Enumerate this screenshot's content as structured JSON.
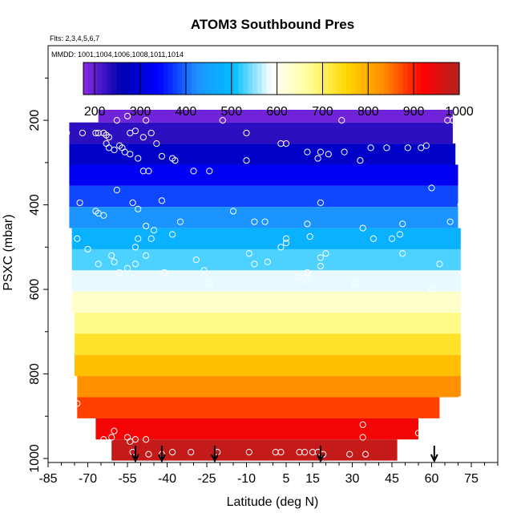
{
  "chart_data": {
    "type": "heatmap",
    "title": "ATOM3 Southbound Pres",
    "flights_label": "Flts: 2,3,4,5,6,7",
    "dates_label": "MMDD: 1001,1004,1006,1008,1011,1014",
    "xlabel": "Latitude (deg N)",
    "ylabel": "PSXC (mbar)",
    "xlim": [
      -85,
      85
    ],
    "ylim": [
      1000,
      50
    ],
    "x_ticks": [
      -85,
      -70,
      -55,
      -40,
      -25,
      -10,
      5,
      15,
      30,
      45,
      60,
      75
    ],
    "y_ticks": [
      200,
      400,
      600,
      800,
      1000
    ],
    "colorbar": {
      "range": [
        175,
        1000
      ],
      "ticks": [
        200,
        300,
        400,
        500,
        600,
        700,
        800,
        900,
        1000
      ],
      "colors": [
        "#8A2BE2",
        "#0000B0",
        "#0000FF",
        "#1E90FF",
        "#00BFFF",
        "#FFFFFF",
        "#FFFF99",
        "#FFD700",
        "#FF8C00",
        "#FF0000",
        "#B22222"
      ]
    },
    "bands": [
      {
        "p_top": 175,
        "p_bot": 205,
        "x_start": -66,
        "x_end": 68,
        "value": 190
      },
      {
        "p_top": 205,
        "p_bot": 255,
        "x_start": -77,
        "x_end": 68,
        "value": 230
      },
      {
        "p_top": 255,
        "p_bot": 305,
        "x_start": -77,
        "x_end": 69,
        "value": 280
      },
      {
        "p_top": 305,
        "p_bot": 355,
        "x_start": -77,
        "x_end": 70,
        "value": 330
      },
      {
        "p_top": 355,
        "p_bot": 405,
        "x_start": -77,
        "x_end": 70,
        "value": 380
      },
      {
        "p_top": 405,
        "p_bot": 455,
        "x_start": -77,
        "x_end": 70,
        "value": 430
      },
      {
        "p_top": 455,
        "p_bot": 505,
        "x_start": -76,
        "x_end": 71,
        "value": 480
      },
      {
        "p_top": 505,
        "p_bot": 555,
        "x_start": -76,
        "x_end": 71,
        "value": 530
      },
      {
        "p_top": 555,
        "p_bot": 605,
        "x_start": -76,
        "x_end": 71,
        "value": 580
      },
      {
        "p_top": 605,
        "p_bot": 655,
        "x_start": -76,
        "x_end": 71,
        "value": 630
      },
      {
        "p_top": 655,
        "p_bot": 705,
        "x_start": -75,
        "x_end": 71,
        "value": 680
      },
      {
        "p_top": 705,
        "p_bot": 755,
        "x_start": -75,
        "x_end": 71,
        "value": 730
      },
      {
        "p_top": 755,
        "p_bot": 805,
        "x_start": -75,
        "x_end": 71,
        "value": 780
      },
      {
        "p_top": 805,
        "p_bot": 855,
        "x_start": -74,
        "x_end": 71,
        "value": 830
      },
      {
        "p_top": 855,
        "p_bot": 905,
        "x_start": -74,
        "x_end": 63,
        "value": 880
      },
      {
        "p_top": 905,
        "p_bot": 955,
        "x_start": -67,
        "x_end": 55,
        "value": 930
      },
      {
        "p_top": 955,
        "p_bot": 1005,
        "x_start": -61,
        "x_end": 47,
        "value": 980
      }
    ],
    "points": [
      [
        -78,
        230
      ],
      [
        -72,
        230
      ],
      [
        -67,
        230
      ],
      [
        -66,
        230
      ],
      [
        -64,
        230
      ],
      [
        -63,
        235
      ],
      [
        -62,
        240
      ],
      [
        -63,
        255
      ],
      [
        -62,
        265
      ],
      [
        -60,
        270
      ],
      [
        -58,
        260
      ],
      [
        -57,
        265
      ],
      [
        -56,
        275
      ],
      [
        -54,
        280
      ],
      [
        -51,
        290
      ],
      [
        -49,
        320
      ],
      [
        -47,
        320
      ],
      [
        -46,
        230
      ],
      [
        -49,
        240
      ],
      [
        -54,
        230
      ],
      [
        -52,
        225
      ],
      [
        -48,
        200
      ],
      [
        -55,
        190
      ],
      [
        -59,
        200
      ],
      [
        -44,
        255
      ],
      [
        -42,
        285
      ],
      [
        -38,
        290
      ],
      [
        -37,
        295
      ],
      [
        -30,
        320
      ],
      [
        -24,
        320
      ],
      [
        -10,
        230
      ],
      [
        -10,
        295
      ],
      [
        -19,
        200
      ],
      [
        3,
        255
      ],
      [
        5,
        255
      ],
      [
        13,
        275
      ],
      [
        18,
        275
      ],
      [
        17,
        290
      ],
      [
        21,
        280
      ],
      [
        26,
        200
      ],
      [
        27,
        275
      ],
      [
        33,
        295
      ],
      [
        37,
        265
      ],
      [
        43,
        265
      ],
      [
        51,
        265
      ],
      [
        56,
        265
      ],
      [
        58,
        260
      ],
      [
        66,
        200
      ],
      [
        68,
        200
      ],
      [
        -84,
        370
      ],
      [
        -80,
        395
      ],
      [
        -73,
        395
      ],
      [
        -67,
        415
      ],
      [
        -66,
        420
      ],
      [
        -64,
        425
      ],
      [
        -59,
        365
      ],
      [
        -53,
        395
      ],
      [
        -51,
        410
      ],
      [
        -48,
        450
      ],
      [
        -45,
        460
      ],
      [
        -46,
        480
      ],
      [
        -42,
        390
      ],
      [
        -38,
        470
      ],
      [
        -51,
        480
      ],
      [
        -52,
        500
      ],
      [
        -48,
        520
      ],
      [
        -41,
        560
      ],
      [
        -52,
        540
      ],
      [
        -55,
        550
      ],
      [
        -58,
        560
      ],
      [
        -61,
        520
      ],
      [
        -60,
        535
      ],
      [
        -66,
        540
      ],
      [
        -70,
        505
      ],
      [
        -74,
        480
      ],
      [
        -78,
        550
      ],
      [
        -35,
        440
      ],
      [
        -15,
        415
      ],
      [
        -7,
        440
      ],
      [
        -3,
        440
      ],
      [
        3,
        500
      ],
      [
        5,
        490
      ],
      [
        5,
        480
      ],
      [
        13,
        445
      ],
      [
        14,
        475
      ],
      [
        18,
        395
      ],
      [
        13,
        560
      ],
      [
        13,
        580
      ],
      [
        10,
        570
      ],
      [
        18,
        525
      ],
      [
        18,
        545
      ],
      [
        -29,
        530
      ],
      [
        -24,
        585
      ],
      [
        -26,
        555
      ],
      [
        -9,
        515
      ],
      [
        -7,
        540
      ],
      [
        -2,
        535
      ],
      [
        34,
        455
      ],
      [
        38,
        480
      ],
      [
        45,
        480
      ],
      [
        48,
        470
      ],
      [
        49,
        515
      ],
      [
        49,
        445
      ],
      [
        60,
        360
      ],
      [
        63,
        540
      ],
      [
        60,
        600
      ],
      [
        67,
        440
      ],
      [
        71,
        400
      ],
      [
        31,
        585
      ],
      [
        20,
        515
      ],
      [
        -74,
        870
      ],
      [
        -64,
        955
      ],
      [
        -61,
        950
      ],
      [
        -60,
        935
      ],
      [
        -55,
        950
      ],
      [
        -54,
        960
      ],
      [
        -52,
        955
      ],
      [
        -48,
        955
      ],
      [
        -53,
        985
      ],
      [
        -47,
        990
      ],
      [
        -42,
        990
      ],
      [
        -38,
        985
      ],
      [
        -31,
        985
      ],
      [
        -21,
        985
      ],
      [
        -9,
        985
      ],
      [
        1,
        985
      ],
      [
        3,
        985
      ],
      [
        10,
        985
      ],
      [
        12,
        985
      ],
      [
        15,
        985
      ],
      [
        17,
        985
      ],
      [
        19,
        990
      ],
      [
        29,
        990
      ],
      [
        35,
        990
      ],
      [
        34,
        950
      ],
      [
        34,
        920
      ],
      [
        50,
        985
      ],
      [
        55,
        940
      ],
      [
        62,
        970
      ],
      [
        71,
        860
      ]
    ],
    "arrows_lat": [
      -52,
      -42,
      -22,
      18,
      61
    ]
  }
}
